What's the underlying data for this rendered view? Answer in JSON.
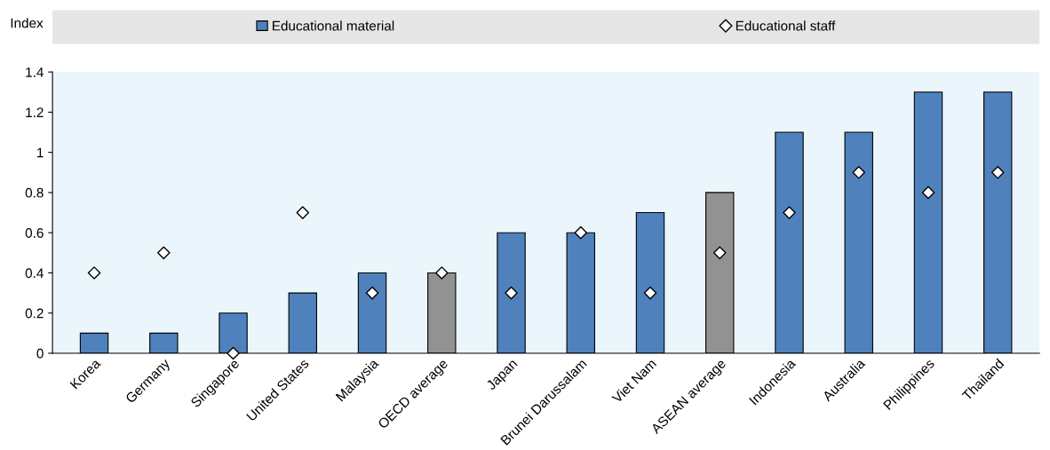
{
  "chart_data": {
    "type": "bar",
    "ylabel": "Index",
    "categories": [
      "Korea",
      "Germany",
      "Singapore",
      "United States",
      "Malaysia",
      "OECD average",
      "Japan",
      "Brunei Darussalam",
      "Viet Nam",
      "ASEAN average",
      "Indonesia",
      "Australia",
      "Philippines",
      "Thailand"
    ],
    "series": [
      {
        "name": "Educational material",
        "color": "#4f81bd",
        "colors": [
          "#4f81bd",
          "#4f81bd",
          "#4f81bd",
          "#4f81bd",
          "#4f81bd",
          "#929292",
          "#4f81bd",
          "#4f81bd",
          "#4f81bd",
          "#929292",
          "#4f81bd",
          "#4f81bd",
          "#4f81bd",
          "#4f81bd"
        ],
        "values": [
          0.1,
          0.1,
          0.2,
          0.3,
          0.4,
          0.4,
          0.6,
          0.6,
          0.7,
          0.8,
          1.1,
          1.1,
          1.3,
          1.3
        ]
      },
      {
        "name": "Educational staff",
        "type": "scatter",
        "color": "#ffffff",
        "marker": "diamond",
        "x": [
          "Korea",
          "Germany",
          "Singapore",
          "United States",
          "Malaysia",
          "OECD average",
          "Japan",
          "Brunei Darussalam",
          "Viet Nam",
          "ASEAN average",
          "Indonesia",
          "Australia",
          "Philippines",
          "Thailand"
        ],
        "values": [
          0.4,
          0.5,
          0.0,
          0.7,
          0.3,
          0.4,
          0.3,
          0.6,
          0.3,
          0.5,
          0.7,
          0.9,
          0.8,
          0.9
        ]
      }
    ],
    "ylim": [
      0,
      1.4
    ],
    "yticks": [
      0,
      0.2,
      0.4,
      0.6,
      0.8,
      1,
      1.2,
      1.4
    ],
    "legend": "top",
    "grid": false
  }
}
